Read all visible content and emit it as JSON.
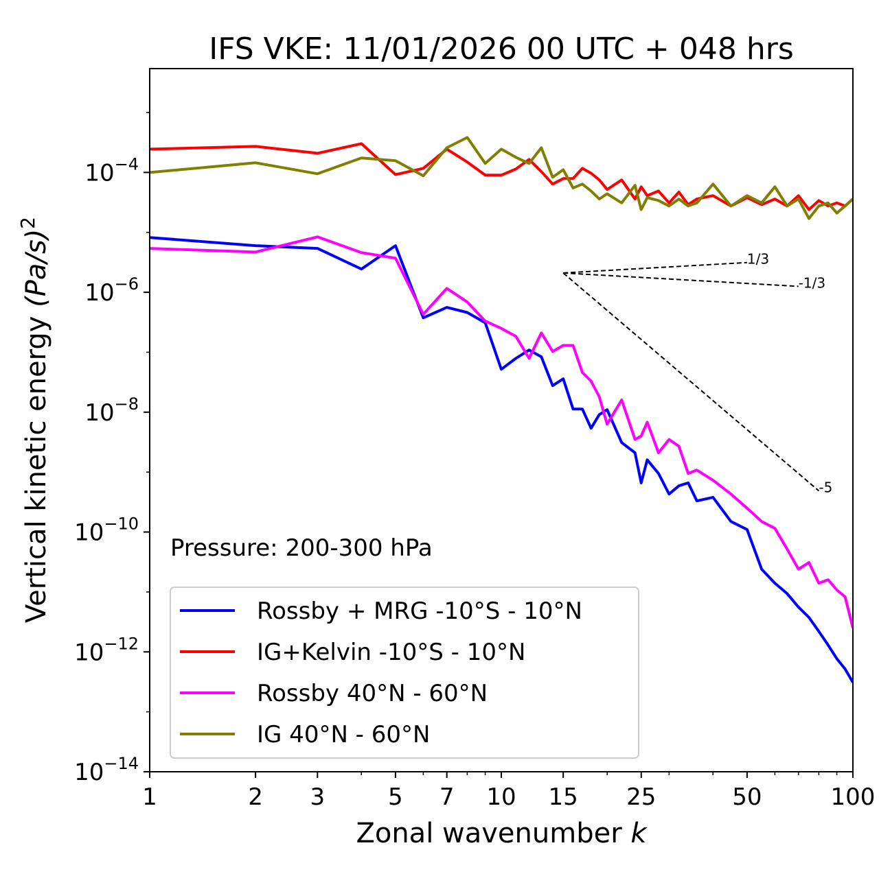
{
  "chart_data": {
    "type": "line",
    "title": "IFS VKE: 11/01/2026 00 UTC + 048 hrs",
    "xlabel": "Zonal wavenumber",
    "xlabel_var": "k",
    "ylabel": "Vertical kinetic energy",
    "ylabel_units": "(Pa/s)",
    "ylabel_units_exp": "2",
    "xscale": "log",
    "yscale": "log",
    "xlim": [
      1,
      100
    ],
    "ylim": [
      1e-14,
      0.0054
    ],
    "x_ticks": [
      1,
      2,
      3,
      5,
      7,
      10,
      15,
      25,
      50,
      100
    ],
    "x_tick_labels": [
      "1",
      "2",
      "3",
      "5",
      "7",
      "10",
      "15",
      "25",
      "50",
      "100"
    ],
    "y_ticks": [
      0.0001,
      1e-06,
      1e-08,
      1e-10,
      1e-12,
      1e-14
    ],
    "y_tick_labels": [
      {
        "base": "10",
        "exp": "−4"
      },
      {
        "base": "10",
        "exp": "−6"
      },
      {
        "base": "10",
        "exp": "−8"
      },
      {
        "base": "10",
        "exp": "−10"
      },
      {
        "base": "10",
        "exp": "−12"
      },
      {
        "base": "10",
        "exp": "−14"
      }
    ],
    "grid": false,
    "annotation": "Pressure: 200-300 hPa",
    "legend_position": "lower-left",
    "x": [
      1,
      2,
      3,
      4,
      5,
      6,
      7,
      8,
      9,
      10,
      11,
      12,
      13,
      14,
      15,
      16,
      17,
      18,
      19,
      20,
      22,
      24,
      25,
      26,
      28,
      30,
      32,
      34,
      36,
      40,
      45,
      50,
      55,
      60,
      65,
      70,
      75,
      80,
      85,
      90,
      95,
      100
    ],
    "series": [
      {
        "name": "Rossby + MRG -10°S - 10°N",
        "color": "#0000ff",
        "values": [
          8.2e-06,
          6e-06,
          5.4e-06,
          2.44e-06,
          6e-06,
          3.75e-07,
          5.6e-07,
          4.6e-07,
          3.1e-07,
          5.2e-08,
          7.9e-08,
          1.09e-07,
          8.4e-08,
          2.77e-08,
          3.6e-08,
          1.13e-08,
          1.13e-08,
          5.4e-09,
          9.1e-09,
          1.1e-08,
          3.1e-09,
          2.1e-09,
          6.6e-10,
          1.6e-09,
          9.5e-10,
          4.3e-10,
          5.9e-10,
          6.6e-10,
          3.3e-10,
          3.8e-10,
          1.5e-10,
          1.1e-10,
          2.4e-11,
          1.4e-11,
          9.4e-12,
          5.6e-12,
          3.75e-12,
          2.2e-12,
          1.3e-12,
          7.7e-13,
          5.2e-13,
          3.1e-13
        ]
      },
      {
        "name": "IG+Kelvin -10°S - 10°N",
        "color": "#ff0000",
        "values": [
          0.000245,
          0.000272,
          0.000209,
          0.000302,
          9.2e-05,
          0.000117,
          0.000245,
          0.000149,
          9e-05,
          9e-05,
          0.000114,
          0.000165,
          0.000103,
          6.4e-05,
          7.9e-05,
          7.9e-05,
          0.000117,
          9.7e-05,
          7.5e-05,
          5.2e-05,
          7.5e-05,
          3.6e-05,
          5.75e-05,
          4.1e-05,
          4.9e-05,
          3.1e-05,
          4.7e-05,
          2.9e-05,
          3.6e-05,
          4.1e-05,
          2.75e-05,
          3.8e-05,
          2.9e-05,
          3.6e-05,
          2.75e-05,
          4.1e-05,
          2.4e-05,
          3.4e-05,
          2.75e-05,
          3.1e-05,
          2.75e-05,
          3.6e-05
        ]
      },
      {
        "name": "Rossby 40°N - 60°N",
        "color": "#ff00ff",
        "values": [
          5.4e-06,
          4.7e-06,
          8.4e-06,
          4.6e-06,
          3.7e-06,
          4.3e-07,
          1.16e-06,
          6.9e-07,
          3.3e-07,
          2.5e-07,
          1.84e-07,
          7.9e-08,
          2.1e-07,
          1.03e-07,
          1.3e-07,
          1.3e-07,
          4.6e-08,
          3.3e-08,
          1.8e-08,
          6.3e-09,
          1.6e-08,
          3.5e-09,
          4e-09,
          6.8e-09,
          2.1e-09,
          3.5e-09,
          2.7e-09,
          9.5e-10,
          1.08e-09,
          7.3e-10,
          4.3e-10,
          2.5e-10,
          1.5e-10,
          1.15e-10,
          5.2e-11,
          2.4e-11,
          3.1e-11,
          1.4e-11,
          1.6e-11,
          1.08e-11,
          8.3e-12,
          2.5e-12
        ]
      },
      {
        "name": "IG 40°N - 60°N",
        "color": "#808000",
        "values": [
          0.0001,
          0.000145,
          9.5e-05,
          0.000174,
          0.000157,
          8.8e-05,
          0.000258,
          0.000383,
          0.000141,
          0.000245,
          0.000179,
          0.000141,
          0.000258,
          8.3e-05,
          0.000111,
          5.5e-05,
          6.4e-05,
          4.9e-05,
          3.6e-05,
          4.4e-05,
          3.1e-05,
          6.1e-05,
          2.4e-05,
          3.8e-05,
          3.4e-05,
          2.75e-05,
          3.6e-05,
          2.75e-05,
          3.1e-05,
          6.4e-05,
          2.75e-05,
          4.1e-05,
          3.1e-05,
          5.75e-05,
          2.75e-05,
          3.6e-05,
          1.7e-05,
          2.75e-05,
          3.1e-05,
          2.1e-05,
          2.75e-05,
          3.6e-05
        ]
      }
    ],
    "reference_lines": [
      {
        "label": "1/3",
        "slope": 0.3333,
        "x": [
          15,
          50
        ],
        "y0": 2.1e-06
      },
      {
        "label": "-1/3",
        "slope": -0.3333,
        "x": [
          15,
          70
        ],
        "y0": 2.1e-06
      },
      {
        "label": "-5",
        "slope": -5,
        "x": [
          15,
          80
        ],
        "y0": 2.1e-06
      }
    ]
  }
}
